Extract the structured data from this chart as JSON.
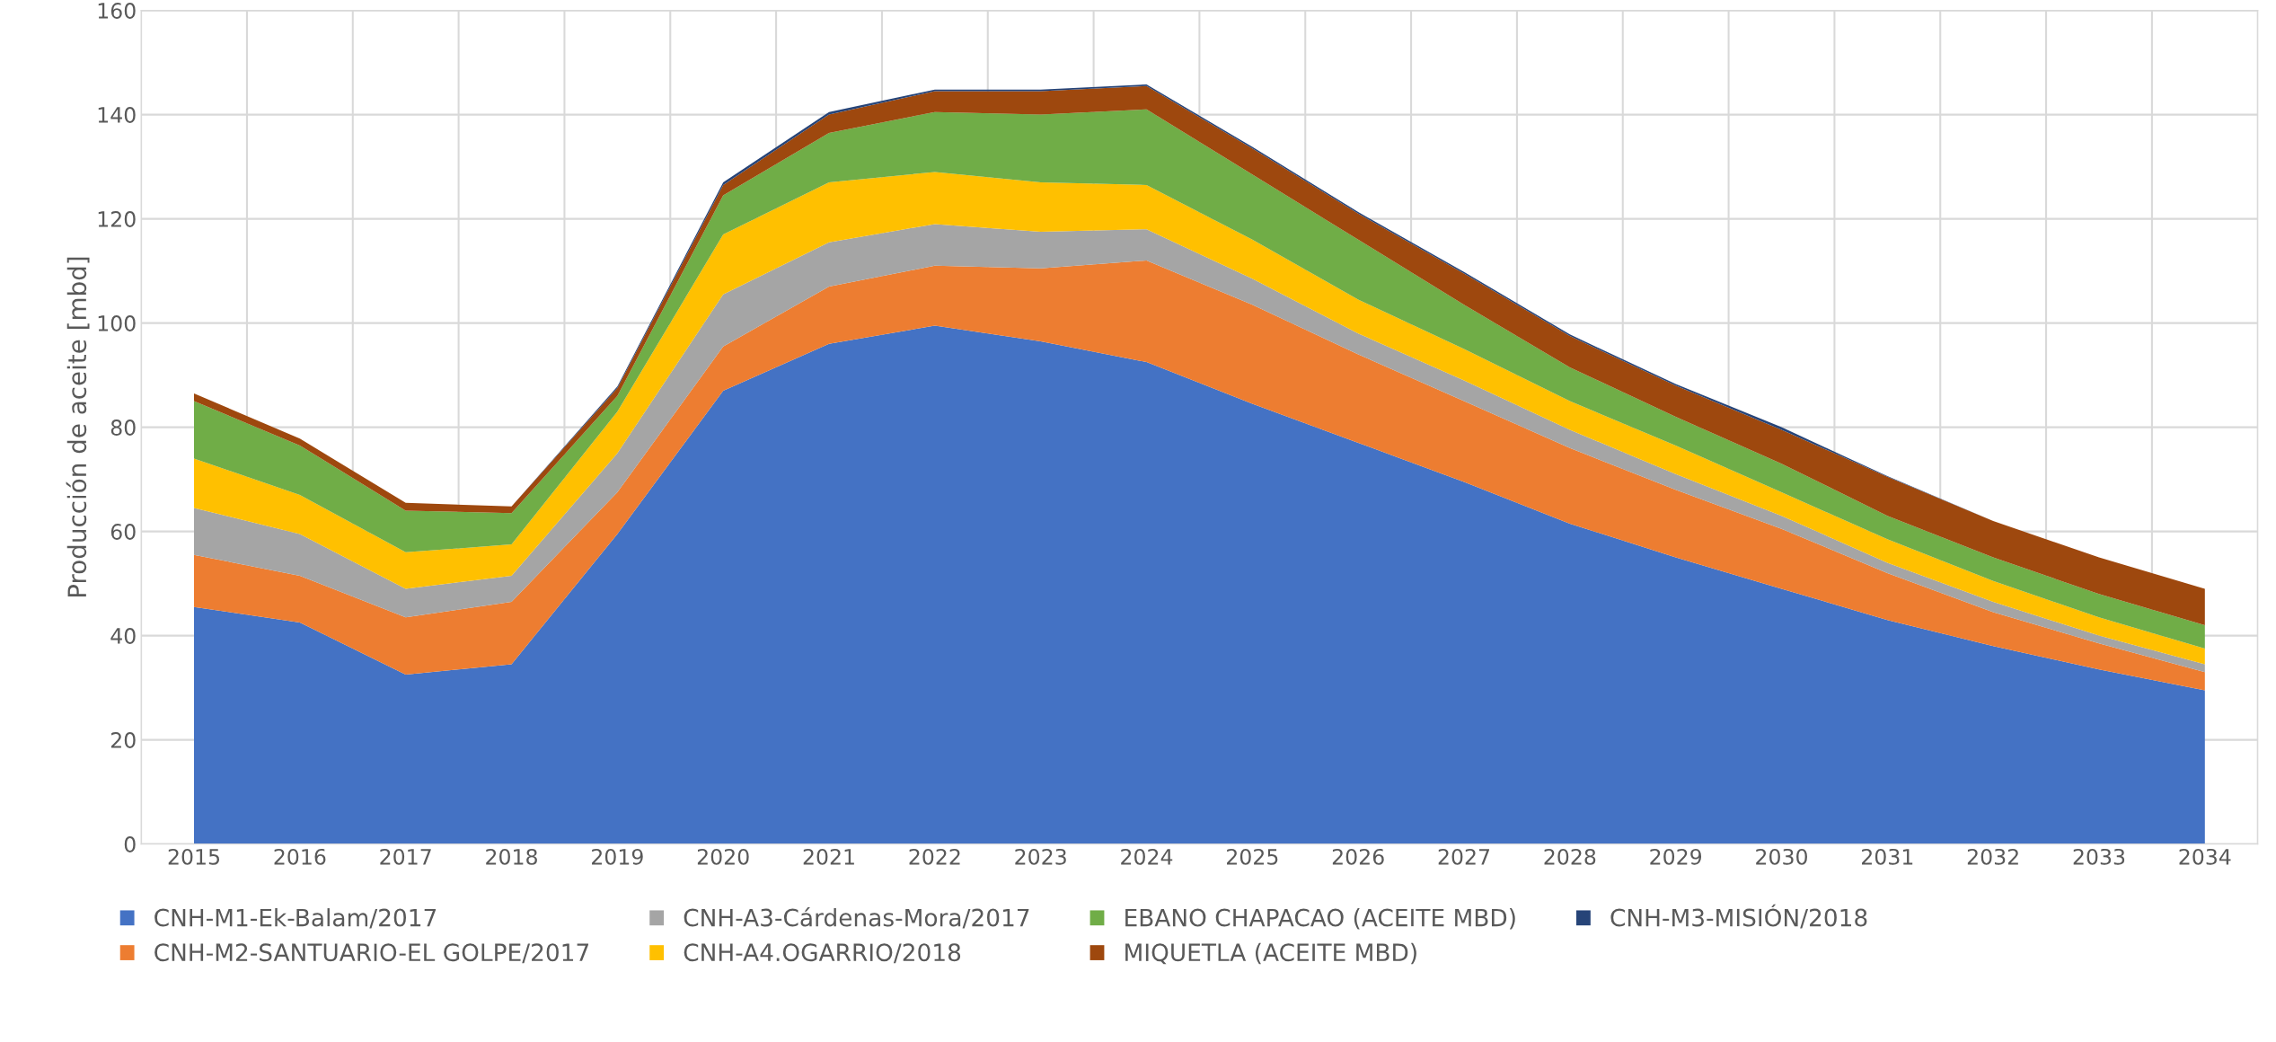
{
  "chart_data": {
    "type": "area",
    "stacked": true,
    "ylabel": "Producción de aceite [mbd]",
    "categories": [
      "2015",
      "2016",
      "2017",
      "2018",
      "2019",
      "2020",
      "2021",
      "2022",
      "2023",
      "2024",
      "2025",
      "2026",
      "2027",
      "2028",
      "2029",
      "2030",
      "2031",
      "2032",
      "2033",
      "2034"
    ],
    "series": [
      {
        "name": "CNH-M1-Ek-Balam/2017",
        "color": "#4472c4",
        "values": [
          45.5,
          42.5,
          32.5,
          34.5,
          59.5,
          87,
          96,
          99.5,
          96.5,
          92.5,
          84.5,
          77,
          69.5,
          61.5,
          55,
          49,
          43,
          38,
          33.5,
          29.5
        ]
      },
      {
        "name": "CNH-M2-SANTUARIO-EL GOLPE/2017",
        "color": "#ed7d31",
        "values": [
          10,
          9,
          11,
          12,
          8,
          8.5,
          11,
          11.5,
          14,
          19.5,
          19,
          17,
          15.5,
          14.5,
          13,
          11.5,
          9,
          6.5,
          5,
          3.5
        ]
      },
      {
        "name": "CNH-A3-Cárdenas-Mora/2017",
        "color": "#a5a5a5",
        "values": [
          9,
          8,
          5.5,
          5,
          7.5,
          10,
          8.5,
          8,
          7,
          6,
          5,
          4,
          4,
          3.5,
          3,
          2.5,
          2,
          2,
          1.5,
          1.5
        ]
      },
      {
        "name": "CNH-A4.OGARRIO/2018",
        "color": "#ffc000",
        "values": [
          9.5,
          7.5,
          7,
          6,
          8,
          11.5,
          11.5,
          10,
          9.5,
          8.5,
          7.5,
          6.5,
          6,
          5.5,
          5.5,
          4.5,
          4.5,
          4,
          3.5,
          3
        ]
      },
      {
        "name": "EBANO CHAPACAO (ACEITE MBD)",
        "color": "#70ad47",
        "values": [
          11,
          9.5,
          8,
          6,
          3,
          7.5,
          9.5,
          11.5,
          13,
          14.5,
          12.5,
          11.5,
          8.5,
          6.5,
          5.5,
          5.5,
          4.5,
          4.5,
          4.5,
          4.5
        ]
      },
      {
        "name": "MIQUETLA (ACEITE MBD)",
        "color": "#9e480e",
        "values": [
          1.5,
          1.3,
          1.5,
          1.3,
          1.5,
          2,
          3.5,
          4,
          4.5,
          4.5,
          5,
          5,
          6,
          6,
          6,
          6.5,
          7.5,
          7,
          7,
          7
        ]
      },
      {
        "name": "CNH-M3-MISIÓN/2018",
        "color": "#264478",
        "values": [
          0,
          0,
          0,
          0,
          0.3,
          0.5,
          0.5,
          0.3,
          0.3,
          0.3,
          0.3,
          0.3,
          0.3,
          0.3,
          0.3,
          0.5,
          0.1,
          0,
          0,
          0
        ]
      }
    ],
    "ylim": [
      0,
      160
    ],
    "yticks": [
      0,
      20,
      40,
      60,
      80,
      100,
      120,
      140,
      160
    ],
    "grid": true,
    "legend": "bottom"
  }
}
